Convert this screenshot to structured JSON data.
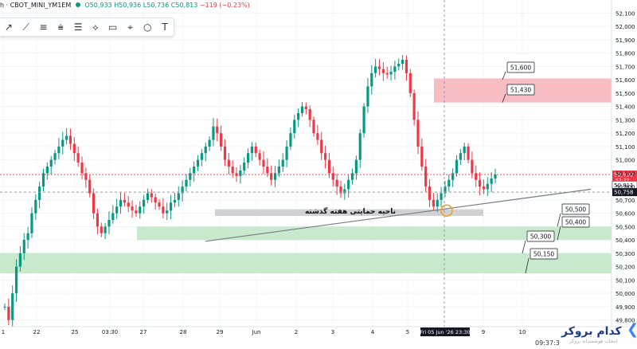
{
  "header": {
    "symbol_text": "h · CBOT_MINI_YM1EM",
    "ohlc": {
      "o": "O50,933",
      "h": "H50,936",
      "l": "L50,736",
      "c": "C50,813",
      "chg": "−119 (−0.23%)"
    }
  },
  "toolbar": {
    "icons": [
      "cursor-icon",
      "line-tool-icon",
      "parallel-channel-icon",
      "fib-tool-icon",
      "brush-icon",
      "rectangle-icon",
      "pitchfork-icon",
      "circle-icon",
      "ruler-icon",
      "text-tool-icon"
    ],
    "glyphs": [
      "↗",
      "⟋",
      "≡",
      "⩧",
      "☰",
      "⟡",
      "▭",
      "⌖",
      "○",
      "T"
    ]
  },
  "brand": {
    "name": "کدام بروکر",
    "tagline": "انتخاب هوشمندانه بروکر"
  },
  "status": {
    "time": "09:37:3"
  },
  "chart_data": {
    "type": "candlestick",
    "y_axis": {
      "range": [
        49700,
        52100
      ],
      "ticks": [
        "52,100",
        "52,000",
        "51,900",
        "51,800",
        "51,700",
        "51,600",
        "51,500",
        "51,400",
        "51,300",
        "51,200",
        "51,100",
        "51,000",
        "50,900",
        "50,800",
        "50,700",
        "50,600",
        "50,500",
        "50,400",
        "50,300",
        "50,200",
        "50,100",
        "50,000",
        "49,900",
        "49,800"
      ]
    },
    "x_axis": {
      "ticks": [
        "1",
        "22",
        "25",
        "03:30",
        "27",
        "28",
        "29",
        "Jun",
        "2",
        "3",
        "4",
        "5",
        "9",
        "10"
      ]
    },
    "price_labels": [
      {
        "value": 50890,
        "text": "50,890",
        "sub": "52:27",
        "color": "#f23645"
      },
      {
        "value": 50811,
        "text": "50,811",
        "color": "#ffffff"
      },
      {
        "value": 50758,
        "text": "50,758",
        "color": "#131722"
      }
    ],
    "crosshair": {
      "x_label": "Fri 05 Jun '26   23:30",
      "y_value": 50758
    },
    "zones": [
      {
        "name": "resistance",
        "y1": 51430,
        "y2": 51610,
        "color": "#f7b2b8"
      },
      {
        "name": "past-week-support",
        "y1": 50580,
        "y2": 50630,
        "color": "#c8c9cd",
        "label": "ناحیه حمایتی هفته گذشته"
      },
      {
        "name": "support-1",
        "y1": 50400,
        "y2": 50500,
        "color": "#bfe5c4"
      },
      {
        "name": "support-2",
        "y1": 50150,
        "y2": 50300,
        "color": "#bfe5c4"
      }
    ],
    "callouts": [
      "51,600",
      "51,430",
      "50,500",
      "50,400",
      "50,300",
      "50,150"
    ],
    "trendline": {
      "from": [
        49250,
        50390
      ],
      "to": [
        49985,
        50780
      ]
    },
    "candles_seed": [
      49900,
      49800,
      50000,
      50200,
      50300,
      50400,
      50450,
      50600,
      50700,
      50800,
      50900,
      50950,
      51000,
      51050,
      51100,
      51150,
      51180,
      51120,
      51050,
      50980,
      50900,
      50850,
      50750,
      50600,
      50500,
      50450,
      50500,
      50550,
      50600,
      50650,
      50700,
      50680,
      50650,
      50620,
      50600,
      50650,
      50700,
      50750,
      50720,
      50680,
      50650,
      50600,
      50620,
      50680,
      50700,
      50750,
      50800,
      50850,
      50900,
      50950,
      51000,
      51050,
      51100,
      51150,
      51250,
      51200,
      51100,
      51000,
      50950,
      50900,
      50880,
      50920,
      50980,
      51050,
      51100,
      51050,
      51000,
      50950,
      50900,
      50850,
      50900,
      50950,
      51000,
      51100,
      51200,
      51300,
      51350,
      51400,
      51380,
      51300,
      51200,
      51150,
      51050,
      51000,
      50900,
      50850,
      50800,
      50750,
      50780,
      50850,
      50900,
      51000,
      51200,
      51400,
      51550,
      51650,
      51700,
      51680,
      51650,
      51640,
      51660,
      51700,
      51720,
      51750,
      51650,
      51500,
      51300,
      51100,
      50950,
      50800,
      50700,
      50650,
      50700,
      50750,
      50800,
      50850,
      50900,
      51000,
      51050,
      51100,
      51000,
      50900,
      50850,
      50800,
      50780,
      50820,
      50860,
      50890
    ]
  }
}
